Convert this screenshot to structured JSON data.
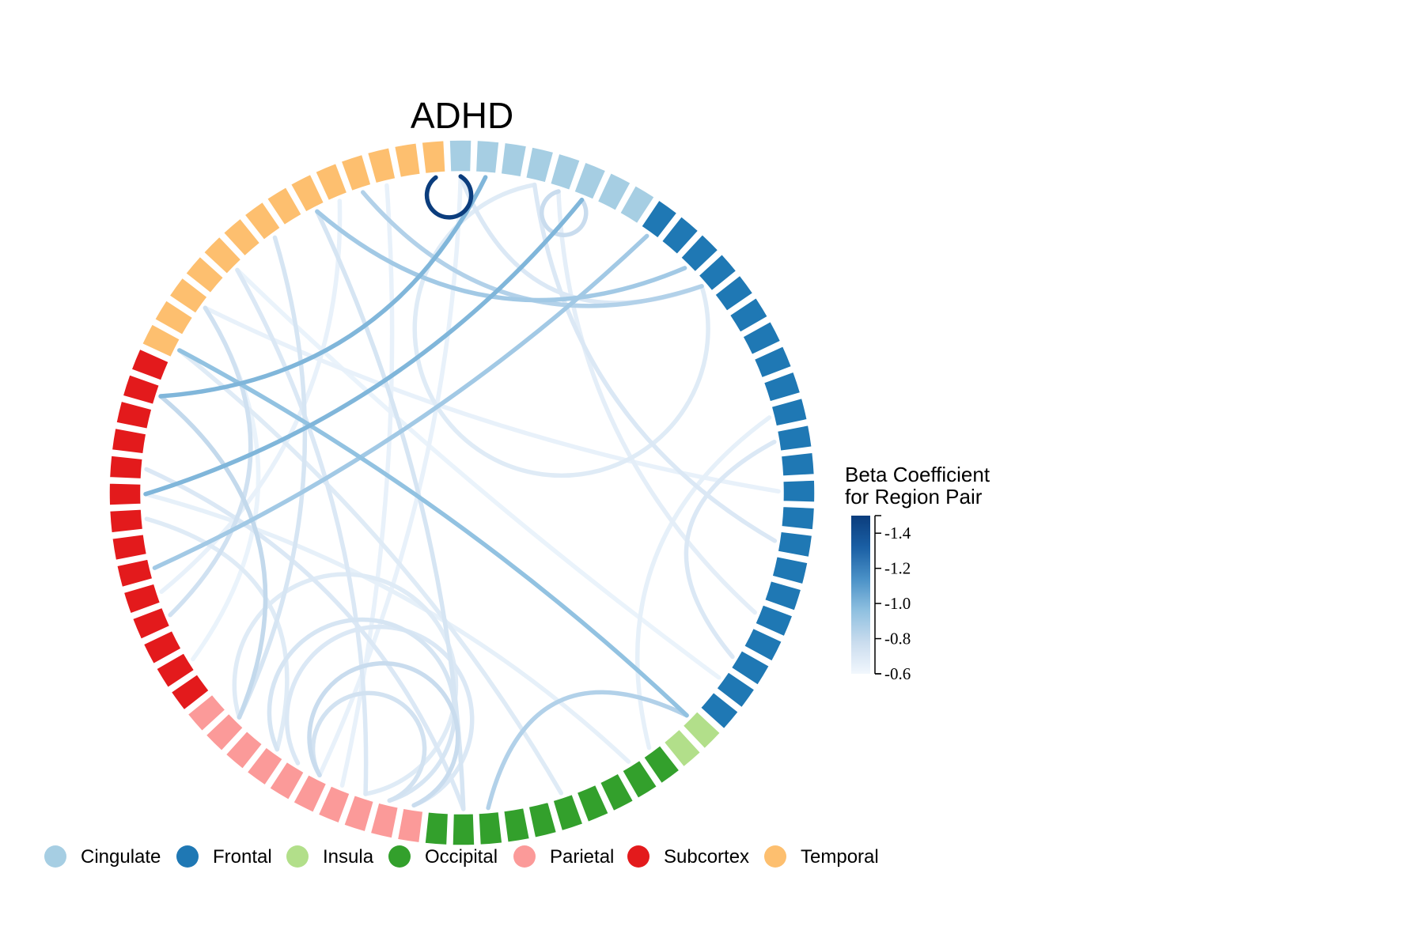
{
  "chart_data": {
    "type": "chord",
    "title": "ADHD",
    "colorbar": {
      "title_lines": [
        "Beta Coefficient",
        "for Region Pair"
      ],
      "ticks": [
        "-1.4",
        "-1.2",
        "-1.0",
        "-0.8",
        "-0.6"
      ],
      "range": [
        -0.6,
        -1.5
      ],
      "colors": [
        "#f1f7fd",
        "#c9dcee",
        "#8fc0e0",
        "#4a91c7",
        "#1a5fa4",
        "#0b3d7d"
      ]
    },
    "regions": [
      {
        "name": "Cingulate",
        "color": "#a6cee3",
        "segments": 8
      },
      {
        "name": "Frontal",
        "color": "#1f78b4",
        "segments": 22
      },
      {
        "name": "Insula",
        "color": "#b2df8a",
        "segments": 2
      },
      {
        "name": "Occipital",
        "color": "#33a02c",
        "segments": 10
      },
      {
        "name": "Parietal",
        "color": "#fb9a99",
        "segments": 10
      },
      {
        "name": "Subcortex",
        "color": "#e31a1c",
        "segments": 14
      },
      {
        "name": "Temporal",
        "color": "#fdbf6f",
        "segments": 14
      }
    ],
    "legend": [
      "Cingulate",
      "Frontal",
      "Insula",
      "Occipital",
      "Parietal",
      "Subcortex",
      "Temporal"
    ],
    "connections": [
      {
        "from": 1,
        "to": 64,
        "beta": -1.0
      },
      {
        "from": 5,
        "to": 60,
        "beta": -1.0
      },
      {
        "from": 66,
        "to": 30,
        "beta": -0.95
      },
      {
        "from": 74,
        "to": 10,
        "beta": -0.9
      },
      {
        "from": 76,
        "to": 11,
        "beta": -0.85
      },
      {
        "from": 79,
        "to": 80,
        "beta": -1.5
      },
      {
        "from": 68,
        "to": 55,
        "beta": -0.75
      },
      {
        "from": 72,
        "to": 50,
        "beta": -0.72
      },
      {
        "from": 70,
        "to": 44,
        "beta": -0.7
      },
      {
        "from": 74,
        "to": 40,
        "beta": -0.72
      },
      {
        "from": 66,
        "to": 36,
        "beta": -0.68
      },
      {
        "from": 83,
        "to": 22,
        "beta": -0.7
      },
      {
        "from": 84,
        "to": 25,
        "beta": -0.66
      },
      {
        "from": 80,
        "to": 11,
        "beta": -0.7
      },
      {
        "from": 84,
        "to": 85,
        "beta": -0.78
      },
      {
        "from": 88,
        "to": 57,
        "beta": -0.9
      },
      {
        "from": 64,
        "to": 50,
        "beta": -0.8
      },
      {
        "from": 61,
        "to": 40,
        "beta": -0.7
      },
      {
        "from": 60,
        "to": 33,
        "beta": -0.65
      },
      {
        "from": 59,
        "to": 48,
        "beta": -0.68
      },
      {
        "from": 46,
        "to": 42,
        "beta": -0.78
      },
      {
        "from": 48,
        "to": 43,
        "beta": -0.72
      },
      {
        "from": 47,
        "to": 42,
        "beta": -0.7
      },
      {
        "from": 46,
        "to": 43,
        "beta": -0.74
      },
      {
        "from": 50,
        "to": 44,
        "beta": -0.68
      },
      {
        "from": 39,
        "to": 30,
        "beta": -0.85
      },
      {
        "from": 32,
        "to": 17,
        "beta": -0.65
      },
      {
        "from": 27,
        "to": 18,
        "beta": -0.7
      },
      {
        "from": 3,
        "to": 11,
        "beta": -0.68
      },
      {
        "from": 0,
        "to": 46,
        "beta": -0.64
      },
      {
        "from": 53,
        "to": 68,
        "beta": -0.63
      },
      {
        "from": 75,
        "to": 56,
        "beta": -0.64
      },
      {
        "from": 68,
        "to": 20,
        "beta": -0.64
      },
      {
        "from": 70,
        "to": 28,
        "beta": -0.63
      },
      {
        "from": 77,
        "to": 45,
        "beta": -0.64
      }
    ]
  }
}
